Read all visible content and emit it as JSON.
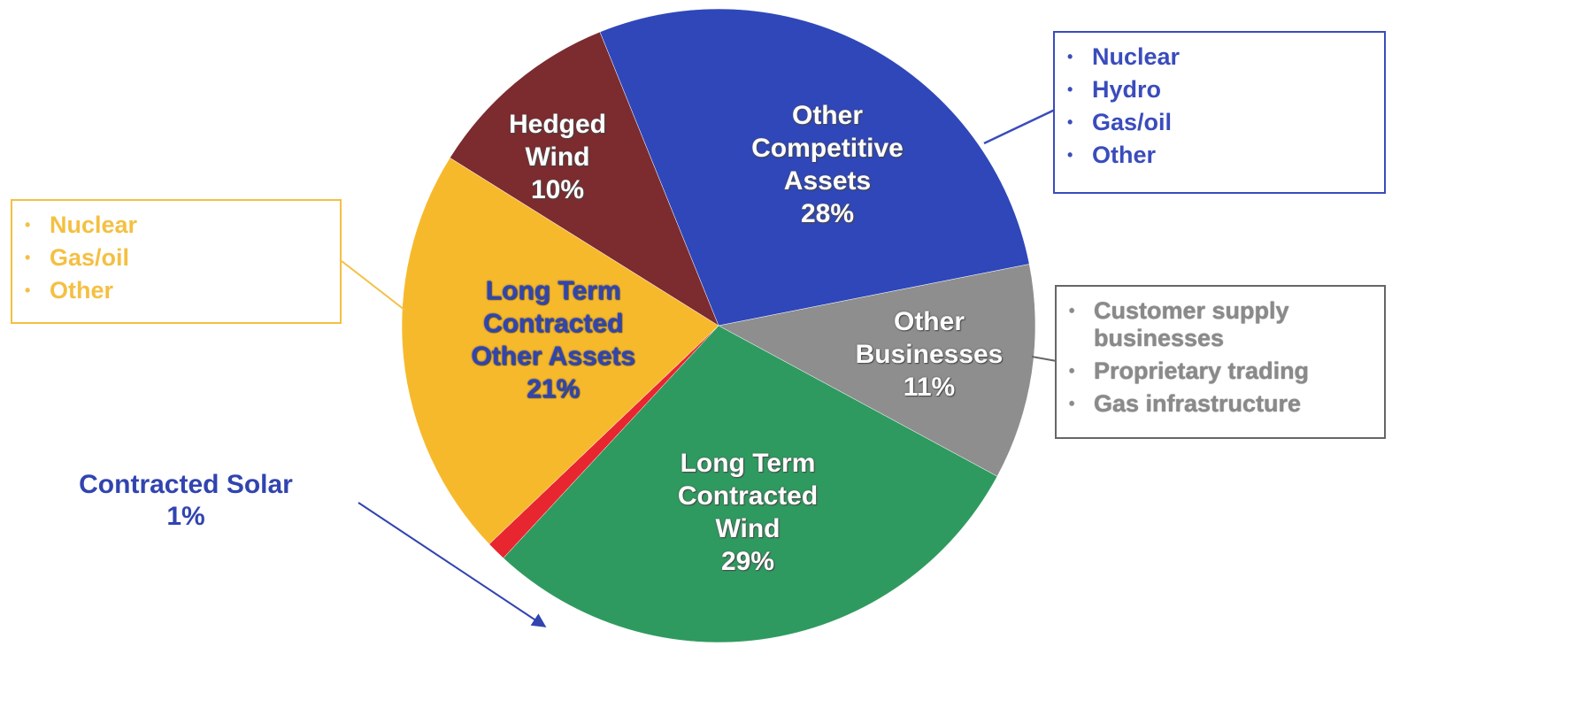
{
  "chart_data": {
    "type": "pie",
    "categories": [
      "Other Competitive Assets",
      "Other Businesses",
      "Long Term Contracted Wind",
      "Contracted Solar",
      "Long Term Contracted Other Assets",
      "Hedged Wind"
    ],
    "values": [
      28,
      11,
      29,
      1,
      21,
      10
    ],
    "value_labels": [
      "28%",
      "11%",
      "29%",
      "1%",
      "21%",
      "10%"
    ],
    "colors": [
      "#2f47b9",
      "#8e8e8e",
      "#2f9a5f",
      "#e8262f",
      "#f7b92c",
      "#7c2b2f"
    ],
    "label_colors": [
      "#ffffff",
      "#ffffff",
      "#ffffff",
      "#3144b0",
      "#3144b0",
      "#ffffff"
    ],
    "callouts": [
      {
        "items": [
          "Nuclear",
          "Hydro",
          "Gas/oil",
          "Other"
        ],
        "color": "#3a4cbc"
      },
      {
        "items": [
          "Customer supply businesses",
          "Proprietary trading",
          "Gas infrastructure"
        ],
        "color": "#8a8a8a"
      },
      {
        "items": [
          "Nuclear",
          "Gas/oil",
          "Other"
        ],
        "color": "#f4c043"
      }
    ]
  }
}
